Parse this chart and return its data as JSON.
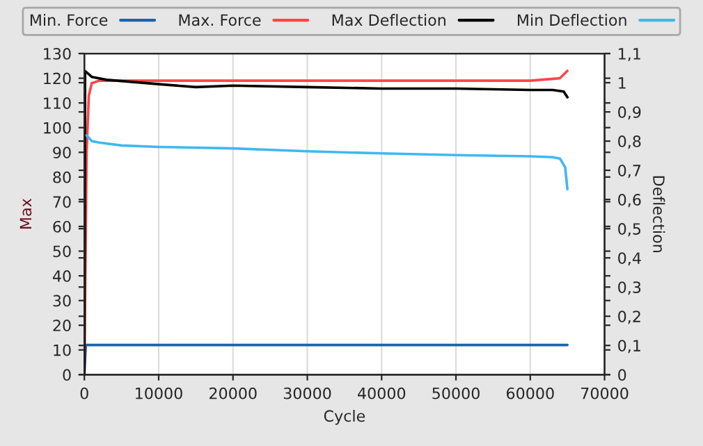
{
  "chart_data": {
    "type": "line",
    "xlabel": "Cycle",
    "ylabel": "Max",
    "y2label": "Deflection",
    "xlim": [
      0,
      70000
    ],
    "xticks": [
      0,
      10000,
      20000,
      30000,
      40000,
      50000,
      60000,
      70000
    ],
    "ylim": [
      0,
      130
    ],
    "yticks": [
      0,
      10,
      20,
      30,
      40,
      50,
      60,
      70,
      80,
      90,
      100,
      110,
      120,
      130
    ],
    "y2lim": [
      0,
      1.1
    ],
    "y2ticks": [
      {
        "value": 0,
        "label": "0"
      },
      {
        "value": 0.1,
        "label": "0,1"
      },
      {
        "value": 0.2,
        "label": "0,2"
      },
      {
        "value": 0.3,
        "label": "0,3"
      },
      {
        "value": 0.4,
        "label": "0,4"
      },
      {
        "value": 0.5,
        "label": "0,5"
      },
      {
        "value": 0.6,
        "label": "0,6"
      },
      {
        "value": 0.7,
        "label": "0,7"
      },
      {
        "value": 0.8,
        "label": "0,8"
      },
      {
        "value": 0.9,
        "label": "0,9"
      },
      {
        "value": 1,
        "label": "1"
      },
      {
        "value": 1.1,
        "label": "1,1"
      }
    ],
    "grid": "x",
    "legend": "top",
    "line_style": "solid",
    "series": [
      {
        "name": "Min. Force",
        "color": "#1f63a8",
        "x": [
          0,
          200,
          5000,
          10000,
          20000,
          30000,
          40000,
          50000,
          60000,
          65000
        ],
        "values": [
          0,
          12,
          12,
          12,
          12,
          12,
          12,
          12,
          12,
          12
        ]
      },
      {
        "name": "Max. Force",
        "color": "#ff4545",
        "x": [
          0,
          300,
          600,
          1000,
          2000,
          5000,
          10000,
          20000,
          30000,
          40000,
          50000,
          60000,
          64000,
          65000
        ],
        "values": [
          0,
          90,
          113,
          118,
          119,
          119,
          119,
          119,
          119,
          119,
          119,
          119,
          120,
          123
        ]
      },
      {
        "name": "Max Deflection",
        "color": "#000000",
        "axis": "y2",
        "x": [
          0,
          100,
          1000,
          3000,
          10000,
          15000,
          20000,
          30000,
          40000,
          50000,
          60000,
          63000,
          64500,
          65000
        ],
        "values": [
          0,
          1.04,
          1.02,
          1.01,
          0.995,
          0.985,
          0.99,
          0.985,
          0.98,
          0.98,
          0.975,
          0.975,
          0.97,
          0.95
        ]
      },
      {
        "name": "Min Deflection",
        "color": "#3fb8f2",
        "axis": "y2",
        "x": [
          300,
          1000,
          2000,
          5000,
          10000,
          20000,
          30000,
          40000,
          50000,
          60000,
          63000,
          64000,
          64700,
          65000
        ],
        "values": [
          0.82,
          0.8,
          0.795,
          0.785,
          0.78,
          0.775,
          0.765,
          0.758,
          0.752,
          0.748,
          0.745,
          0.74,
          0.71,
          0.635
        ]
      }
    ]
  }
}
